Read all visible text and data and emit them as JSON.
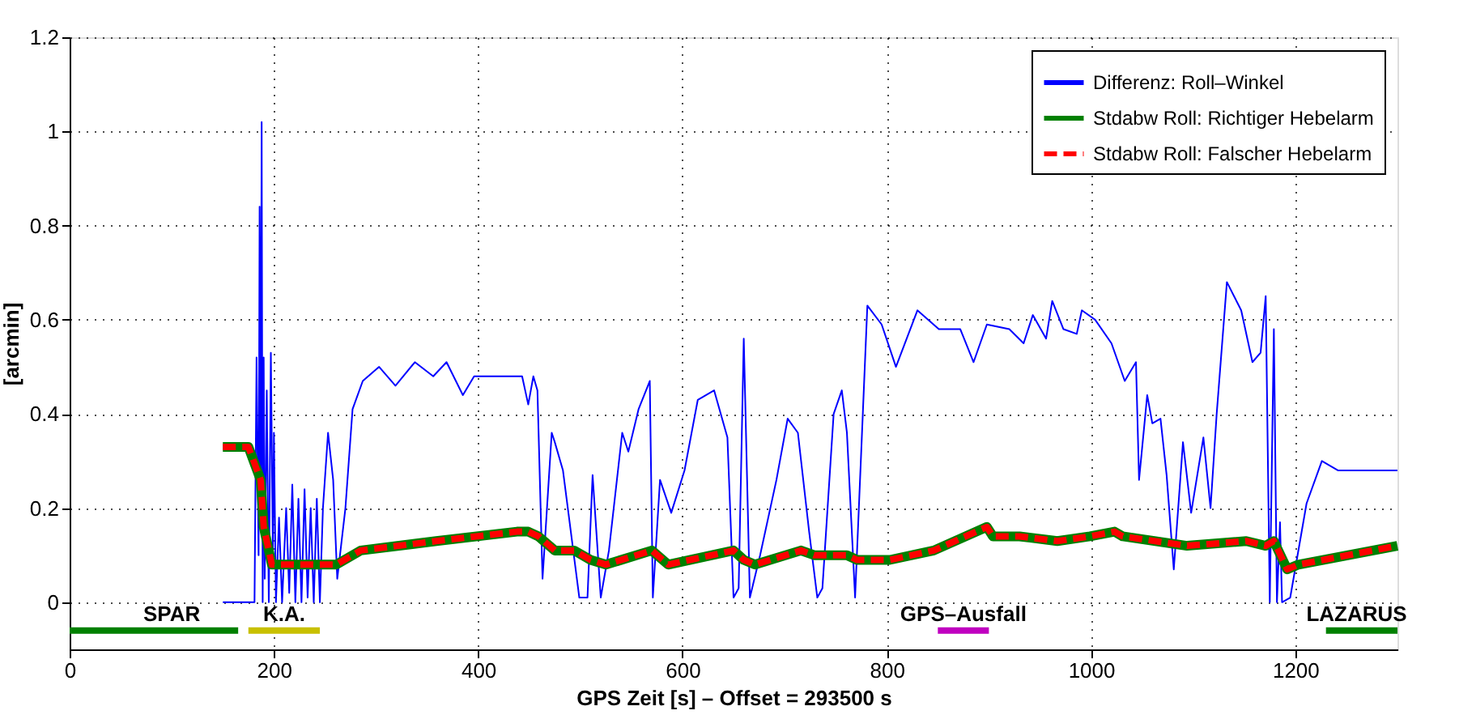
{
  "chart_data": {
    "type": "line",
    "xlabel": "GPS Zeit [s] – Offset =   293500 s",
    "ylabel": "[arcmin]",
    "xlim": [
      0,
      1300
    ],
    "xticks": [
      0,
      200,
      400,
      600,
      800,
      1000,
      1200
    ],
    "ylim": [
      -0.1,
      1.2
    ],
    "yticks": [
      0,
      0.2,
      0.4,
      0.6,
      0.8,
      1,
      1.2
    ],
    "grid": true,
    "legend": "top right",
    "marker": "none",
    "series": [
      {
        "name": "Differenz: Roll–Winkel",
        "color": "#0000ff",
        "line_style": "solid",
        "x": [
          150,
          181,
          183,
          185,
          186,
          187,
          188,
          189,
          190,
          191,
          193,
          195,
          197,
          199,
          200,
          202,
          205,
          208,
          212,
          215,
          218,
          221,
          224,
          227,
          230,
          233,
          236,
          239,
          242,
          245,
          248,
          253,
          258,
          262,
          270,
          277,
          287,
          303,
          319,
          338,
          356,
          369,
          385,
          396,
          443,
          449,
          454,
          458,
          463,
          472,
          475,
          483,
          499,
          507,
          512,
          520,
          528,
          541,
          547,
          557,
          568,
          571,
          578,
          589,
          602,
          615,
          631,
          644,
          650,
          655,
          660,
          666,
          676,
          692,
          703,
          713,
          724,
          732,
          737,
          748,
          756,
          761,
          769,
          781,
          795,
          809,
          830,
          851,
          872,
          885,
          898,
          920,
          934,
          943,
          956,
          962,
          973,
          986,
          991,
          1004,
          1020,
          1033,
          1044,
          1047,
          1055,
          1060,
          1068,
          1074,
          1081,
          1090,
          1098,
          1110,
          1117,
          1123,
          1133,
          1147,
          1158,
          1166,
          1171,
          1175,
          1179,
          1182,
          1185,
          1187,
          1195,
          1211,
          1226,
          1242,
          1253,
          1300
        ],
        "values": [
          0,
          0,
          0.52,
          0.1,
          0.84,
          0.2,
          1.02,
          0,
          0.52,
          0.05,
          0.45,
          0,
          0.53,
          0.1,
          0.36,
          0,
          0.18,
          0,
          0.2,
          0.02,
          0.25,
          0,
          0.22,
          0,
          0.24,
          0.01,
          0.2,
          0,
          0.22,
          0,
          0.2,
          0.36,
          0.26,
          0.05,
          0.2,
          0.41,
          0.47,
          0.5,
          0.46,
          0.51,
          0.48,
          0.51,
          0.44,
          0.48,
          0.48,
          0.42,
          0.48,
          0.45,
          0.05,
          0.36,
          0.34,
          0.28,
          0.01,
          0.01,
          0.27,
          0.01,
          0.11,
          0.36,
          0.32,
          0.41,
          0.47,
          0.01,
          0.26,
          0.19,
          0.28,
          0.43,
          0.45,
          0.35,
          0.01,
          0.03,
          0.56,
          0.01,
          0.1,
          0.26,
          0.39,
          0.36,
          0.15,
          0.01,
          0.03,
          0.4,
          0.45,
          0.36,
          0.01,
          0.63,
          0.59,
          0.5,
          0.62,
          0.58,
          0.58,
          0.51,
          0.59,
          0.58,
          0.55,
          0.61,
          0.56,
          0.64,
          0.58,
          0.57,
          0.62,
          0.6,
          0.55,
          0.47,
          0.51,
          0.26,
          0.44,
          0.38,
          0.39,
          0.27,
          0.07,
          0.34,
          0.19,
          0.35,
          0.2,
          0.4,
          0.68,
          0.62,
          0.51,
          0.53,
          0.65,
          0,
          0.58,
          0,
          0.17,
          0,
          0.01,
          0.21,
          0.3,
          0.28,
          0.28,
          0.28
        ]
      },
      {
        "name": "Stdabw Roll: Richtiger Hebelarm",
        "color": "#008000",
        "line_style": "solid",
        "x": [
          150,
          175,
          187,
          190,
          198,
          210,
          261,
          285,
          359,
          438,
          449,
          459,
          475,
          494,
          510,
          525,
          570,
          586,
          650,
          660,
          671,
          716,
          729,
          761,
          771,
          803,
          846,
          898,
          904,
          930,
          967,
          999,
          1023,
          1031,
          1094,
          1152,
          1171,
          1179,
          1192,
          1203,
          1300
        ],
        "values": [
          0.33,
          0.33,
          0.26,
          0.16,
          0.08,
          0.08,
          0.08,
          0.11,
          0.13,
          0.15,
          0.15,
          0.14,
          0.11,
          0.11,
          0.09,
          0.08,
          0.11,
          0.08,
          0.11,
          0.09,
          0.08,
          0.11,
          0.1,
          0.1,
          0.09,
          0.09,
          0.11,
          0.16,
          0.14,
          0.14,
          0.13,
          0.14,
          0.15,
          0.14,
          0.12,
          0.13,
          0.12,
          0.13,
          0.07,
          0.08,
          0.12
        ]
      },
      {
        "name": "Stdabw Roll: Falscher Hebelarm",
        "color": "#ff0000",
        "line_style": "dashed",
        "x": [
          150,
          175,
          187,
          190,
          198,
          210,
          261,
          285,
          359,
          438,
          449,
          459,
          475,
          494,
          510,
          525,
          570,
          586,
          650,
          660,
          671,
          716,
          729,
          761,
          771,
          803,
          846,
          898,
          904,
          930,
          967,
          999,
          1023,
          1031,
          1094,
          1152,
          1171,
          1179,
          1192,
          1203,
          1300
        ],
        "values": [
          0.33,
          0.33,
          0.26,
          0.16,
          0.08,
          0.08,
          0.08,
          0.11,
          0.13,
          0.15,
          0.15,
          0.14,
          0.11,
          0.11,
          0.09,
          0.08,
          0.11,
          0.08,
          0.11,
          0.09,
          0.08,
          0.11,
          0.1,
          0.1,
          0.09,
          0.09,
          0.11,
          0.16,
          0.14,
          0.14,
          0.13,
          0.14,
          0.15,
          0.14,
          0.12,
          0.13,
          0.12,
          0.13,
          0.07,
          0.08,
          0.12
        ]
      },
      {
        "type": "line",
        "color": "#008000",
        "line_style": "solid",
        "x": [
          0,
          165
        ],
        "values": [
          -0.06,
          -0.06
        ]
      },
      {
        "type": "line",
        "color": "#c8c000",
        "line_style": "solid",
        "x": [
          175,
          245
        ],
        "values": [
          -0.06,
          -0.06
        ]
      },
      {
        "type": "line",
        "color": "#c000c0",
        "line_style": "solid",
        "x": [
          850,
          900
        ],
        "values": [
          -0.06,
          -0.06
        ]
      },
      {
        "type": "line",
        "color": "#008000",
        "line_style": "solid",
        "x": [
          1230,
          1300
        ],
        "values": [
          -0.06,
          -0.06
        ]
      }
    ],
    "annotations": [
      {
        "text": "SPAR",
        "x": 100,
        "y": -0.06
      },
      {
        "text": "K.A.",
        "x": 210,
        "y": -0.06
      },
      {
        "text": "GPS–Ausfall",
        "x": 875,
        "y": -0.06
      },
      {
        "text": "LAZARUS",
        "x": 1260,
        "y": -0.06
      }
    ]
  }
}
